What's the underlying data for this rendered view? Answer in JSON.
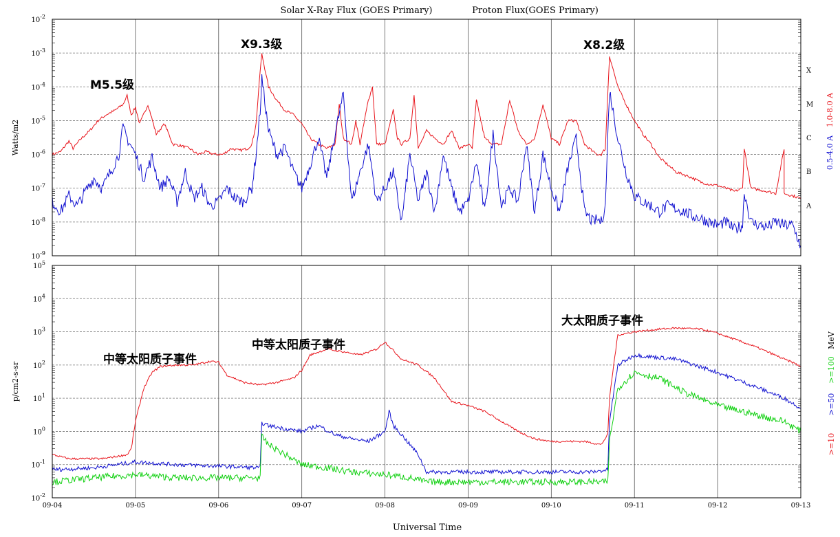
{
  "titles": {
    "xray": "Solar X-Ray Flux (GOES Primary)",
    "proton": "Proton Flux(GOES Primary)"
  },
  "axes": {
    "xray_ylabel": "Watts/m2",
    "proton_ylabel": "p/cm2-s-sr",
    "xlabel": "Universal Time"
  },
  "x_ticks": [
    "09-04",
    "09-05",
    "09-06",
    "09-07",
    "09-08",
    "09-09",
    "09-10",
    "09-11",
    "09-12",
    "09-13"
  ],
  "xray_y_ticks": [
    {
      "base": "10",
      "exp": "-2"
    },
    {
      "base": "10",
      "exp": "-3"
    },
    {
      "base": "10",
      "exp": "-4"
    },
    {
      "base": "10",
      "exp": "-5"
    },
    {
      "base": "10",
      "exp": "-6"
    },
    {
      "base": "10",
      "exp": "-7"
    },
    {
      "base": "10",
      "exp": "-8"
    },
    {
      "base": "10",
      "exp": "-9"
    }
  ],
  "proton_y_ticks": [
    {
      "base": "10",
      "exp": "5"
    },
    {
      "base": "10",
      "exp": "4"
    },
    {
      "base": "10",
      "exp": "3"
    },
    {
      "base": "10",
      "exp": "2"
    },
    {
      "base": "10",
      "exp": "1"
    },
    {
      "base": "10",
      "exp": "0"
    },
    {
      "base": "10",
      "exp": "-1"
    },
    {
      "base": "10",
      "exp": "-2"
    }
  ],
  "flare_classes": [
    "X",
    "M",
    "C",
    "B",
    "A"
  ],
  "xray_legend": [
    {
      "label": "1.0-8.0 A",
      "color": "#e8141b"
    },
    {
      "label": "0.5-4.0 A",
      "color": "#1010d0"
    }
  ],
  "proton_legend": [
    {
      "label": ">=10",
      "color": "#e8141b"
    },
    {
      "label": ">=50",
      "color": "#1010d0"
    },
    {
      "label": ">=100",
      "color": "#10d010"
    },
    {
      "label": "MeV",
      "color": "#000000"
    }
  ],
  "annotations": {
    "m55": "M5.5级",
    "x93": "X9.3级",
    "x82": "X8.2级",
    "sep1": "中等太阳质子事件",
    "sep2": "中等太阳质子事件",
    "sep3": "大太阳质子事件"
  },
  "chart_data": [
    {
      "type": "line",
      "title": "Solar X-Ray Flux (GOES Primary)",
      "ylabel": "Watts/m2",
      "xlabel": "Universal Time",
      "yscale": "log",
      "ylim": [
        1e-09,
        0.01
      ],
      "xlim": [
        0,
        9
      ],
      "x_unit": "days since 09-04 00:00 UT",
      "series": [
        {
          "name": "1.0-8.0 A",
          "color": "#e8141b",
          "x": [
            0,
            0.1,
            0.2,
            0.25,
            0.35,
            0.45,
            0.55,
            0.65,
            0.75,
            0.85,
            0.9,
            0.95,
            1.0,
            1.05,
            1.15,
            1.25,
            1.35,
            1.45,
            1.55,
            1.65,
            1.75,
            1.85,
            1.95,
            2.05,
            2.15,
            2.25,
            2.35,
            2.4,
            2.45,
            2.5,
            2.52,
            2.6,
            2.7,
            2.8,
            2.9,
            3.0,
            3.1,
            3.2,
            3.3,
            3.4,
            3.45,
            3.5,
            3.6,
            3.65,
            3.7,
            3.8,
            3.85,
            3.9,
            4.0,
            4.1,
            4.15,
            4.2,
            4.3,
            4.35,
            4.4,
            4.5,
            4.6,
            4.7,
            4.8,
            4.9,
            5.0,
            5.05,
            5.1,
            5.2,
            5.3,
            5.4,
            5.5,
            5.6,
            5.7,
            5.8,
            5.9,
            6.0,
            6.1,
            6.2,
            6.3,
            6.4,
            6.5,
            6.55,
            6.6,
            6.65,
            6.7,
            6.8,
            6.9,
            7.0,
            7.1,
            7.2,
            7.3,
            7.4,
            7.5,
            7.6,
            7.7,
            7.8,
            7.9,
            8.0,
            8.1,
            8.2,
            8.3,
            8.32,
            8.4,
            8.5,
            8.6,
            8.7,
            8.8,
            8.8,
            8.9,
            9.0
          ],
          "values": [
            1e-06,
            1.2e-06,
            2.5e-06,
            1.5e-06,
            3e-06,
            5e-06,
            1e-05,
            1.5e-05,
            2e-05,
            3e-05,
            5.5e-05,
            1.5e-05,
            2.5e-05,
            8e-06,
            3e-05,
            4e-06,
            8e-06,
            2e-06,
            1.8e-06,
            1.5e-06,
            1e-06,
            1.2e-06,
            1e-06,
            1e-06,
            1.5e-06,
            1.3e-06,
            1.5e-06,
            2e-06,
            8e-06,
            0.0003,
            0.00093,
            0.0001,
            4e-05,
            2e-05,
            1.5e-05,
            8e-06,
            3e-06,
            2e-06,
            1.5e-06,
            2e-06,
            3e-05,
            3e-06,
            2e-06,
            1e-05,
            2e-06,
            4e-05,
            0.0001,
            2e-06,
            2e-06,
            2e-05,
            3e-06,
            2e-06,
            3e-06,
            6e-05,
            1.5e-06,
            5e-06,
            3e-06,
            2e-06,
            5e-06,
            1.5e-06,
            2e-06,
            1.5e-06,
            4e-05,
            3e-06,
            2e-06,
            2e-06,
            4e-05,
            5e-06,
            2e-06,
            3e-06,
            3e-05,
            3e-06,
            2e-06,
            1e-05,
            1e-05,
            2e-06,
            1.2e-06,
            1e-06,
            1e-06,
            1.5e-06,
            0.00082,
            0.0001,
            3e-05,
            1e-05,
            4e-06,
            2e-06,
            8e-07,
            5e-07,
            3e-07,
            2.5e-07,
            2e-07,
            1.5e-07,
            1.3e-07,
            1.2e-07,
            1e-07,
            8e-08,
            1e-07,
            1.5e-06,
            1e-07,
            9e-08,
            8e-08,
            7e-08,
            1.5e-06,
            7e-08,
            6e-08,
            5e-08
          ]
        },
        {
          "name": "0.5-4.0 A",
          "color": "#1010d0",
          "x": [
            0,
            0.1,
            0.2,
            0.3,
            0.4,
            0.5,
            0.6,
            0.7,
            0.8,
            0.85,
            0.9,
            1.0,
            1.1,
            1.2,
            1.3,
            1.4,
            1.5,
            1.6,
            1.7,
            1.8,
            1.9,
            2.0,
            2.1,
            2.2,
            2.3,
            2.4,
            2.45,
            2.5,
            2.52,
            2.6,
            2.7,
            2.8,
            2.9,
            3.0,
            3.1,
            3.2,
            3.3,
            3.4,
            3.5,
            3.6,
            3.7,
            3.8,
            3.9,
            4.0,
            4.1,
            4.2,
            4.3,
            4.4,
            4.5,
            4.6,
            4.7,
            4.8,
            4.9,
            5.0,
            5.1,
            5.2,
            5.3,
            5.4,
            5.5,
            5.6,
            5.7,
            5.8,
            5.9,
            6.0,
            6.1,
            6.2,
            6.3,
            6.4,
            6.5,
            6.55,
            6.6,
            6.65,
            6.7,
            6.8,
            6.9,
            7.0,
            7.1,
            7.2,
            7.3,
            7.4,
            7.5,
            7.6,
            7.7,
            7.8,
            7.9,
            8.0,
            8.1,
            8.2,
            8.3,
            8.32,
            8.4,
            8.5,
            8.6,
            8.7,
            8.8,
            8.9,
            9.0
          ],
          "values": [
            4e-08,
            2e-08,
            6e-08,
            3e-08,
            8e-08,
            2e-07,
            1e-07,
            3e-07,
            1e-06,
            6e-06,
            3e-06,
            1e-06,
            2e-07,
            8e-07,
            1e-07,
            2e-07,
            4e-08,
            3e-07,
            5e-08,
            1e-07,
            3e-08,
            4e-08,
            1e-07,
            5e-08,
            4e-08,
            1e-07,
            1e-06,
            2e-05,
            0.00018,
            5e-06,
            1e-06,
            1.5e-06,
            3e-07,
            1e-07,
            5e-07,
            3e-06,
            2e-07,
            4e-06,
            6e-05,
            4e-08,
            3e-07,
            2e-06,
            4e-08,
            1e-07,
            3e-07,
            1e-08,
            1e-06,
            4e-08,
            3e-07,
            2e-08,
            1e-06,
            1e-07,
            2e-08,
            4e-08,
            6e-07,
            2e-08,
            4e-06,
            3e-08,
            1e-07,
            4e-08,
            2e-06,
            2e-08,
            1e-06,
            1e-07,
            2e-08,
            4e-07,
            3e-06,
            2e-08,
            1e-08,
            1.2e-08,
            1e-08,
            3e-08,
            8e-05,
            3e-06,
            3e-07,
            6e-08,
            4e-08,
            3e-08,
            2e-08,
            3e-08,
            2.5e-08,
            2e-08,
            1.5e-08,
            1.3e-08,
            1e-08,
            8e-09,
            1e-08,
            6e-09,
            8e-09,
            8e-08,
            1e-08,
            8e-09,
            7e-09,
            1e-08,
            8e-09,
            8e-09,
            2e-09
          ]
        }
      ]
    },
    {
      "type": "line",
      "title": "Proton Flux(GOES Primary)",
      "ylabel": "p/cm2-s-sr",
      "xlabel": "Universal Time",
      "yscale": "log",
      "ylim": [
        0.01,
        100000
      ],
      "xlim": [
        0,
        9
      ],
      "x_unit": "days since 09-04 00:00 UT",
      "series": [
        {
          "name": ">=10 MeV",
          "color": "#e8141b",
          "x": [
            0,
            0.2,
            0.4,
            0.6,
            0.8,
            0.9,
            0.95,
            1.0,
            1.1,
            1.2,
            1.3,
            1.5,
            1.7,
            1.9,
            2.0,
            2.1,
            2.3,
            2.5,
            2.7,
            2.9,
            3.0,
            3.1,
            3.3,
            3.5,
            3.7,
            3.9,
            4.0,
            4.2,
            4.4,
            4.6,
            4.8,
            5.0,
            5.2,
            5.4,
            5.6,
            5.8,
            6.0,
            6.2,
            6.4,
            6.6,
            6.68,
            6.7,
            6.75,
            6.8,
            7.0,
            7.3,
            7.5,
            7.8,
            8.0,
            8.2,
            8.4,
            8.6,
            8.8,
            8.9,
            9.0
          ],
          "values": [
            0.2,
            0.15,
            0.15,
            0.15,
            0.18,
            0.2,
            0.3,
            2,
            20,
            60,
            90,
            100,
            100,
            130,
            120,
            50,
            30,
            25,
            30,
            40,
            70,
            200,
            300,
            250,
            200,
            300,
            500,
            150,
            100,
            40,
            8,
            6,
            4,
            2,
            1,
            0.6,
            0.5,
            0.5,
            0.5,
            0.4,
            0.8,
            10,
            100,
            800,
            1000,
            1200,
            1300,
            1200,
            900,
            600,
            400,
            250,
            150,
            120,
            90
          ]
        },
        {
          "name": ">=50 MeV",
          "color": "#1010d0",
          "x": [
            0,
            0.5,
            1.0,
            1.5,
            2.0,
            2.5,
            2.52,
            2.6,
            2.8,
            3.0,
            3.2,
            3.4,
            3.6,
            3.8,
            4.0,
            4.05,
            4.1,
            4.2,
            4.4,
            4.5,
            4.6,
            5.0,
            5.5,
            6.0,
            6.5,
            6.68,
            6.7,
            6.8,
            7.0,
            7.5,
            8.0,
            8.5,
            8.8,
            9.0
          ],
          "values": [
            0.07,
            0.08,
            0.12,
            0.1,
            0.09,
            0.08,
            1.8,
            1.5,
            1.2,
            1,
            1.5,
            0.8,
            0.6,
            0.5,
            1,
            4,
            1.5,
            0.8,
            0.2,
            0.06,
            0.06,
            0.06,
            0.06,
            0.06,
            0.06,
            0.07,
            2,
            100,
            200,
            150,
            60,
            20,
            10,
            5
          ]
        },
        {
          "name": ">=100 MeV",
          "color": "#10d010",
          "x": [
            0,
            0.5,
            1.0,
            1.5,
            2.0,
            2.5,
            2.52,
            2.6,
            2.8,
            3.0,
            3.3,
            3.6,
            4.0,
            4.3,
            4.5,
            5.0,
            5.5,
            6.0,
            6.5,
            6.68,
            6.7,
            6.8,
            7.0,
            7.3,
            7.6,
            8.0,
            8.5,
            8.8,
            9.0
          ],
          "values": [
            0.03,
            0.04,
            0.05,
            0.04,
            0.04,
            0.04,
            0.7,
            0.4,
            0.2,
            0.1,
            0.08,
            0.06,
            0.05,
            0.04,
            0.03,
            0.03,
            0.03,
            0.03,
            0.03,
            0.03,
            0.5,
            20,
            60,
            40,
            15,
            6,
            3,
            2,
            1
          ]
        }
      ]
    }
  ]
}
